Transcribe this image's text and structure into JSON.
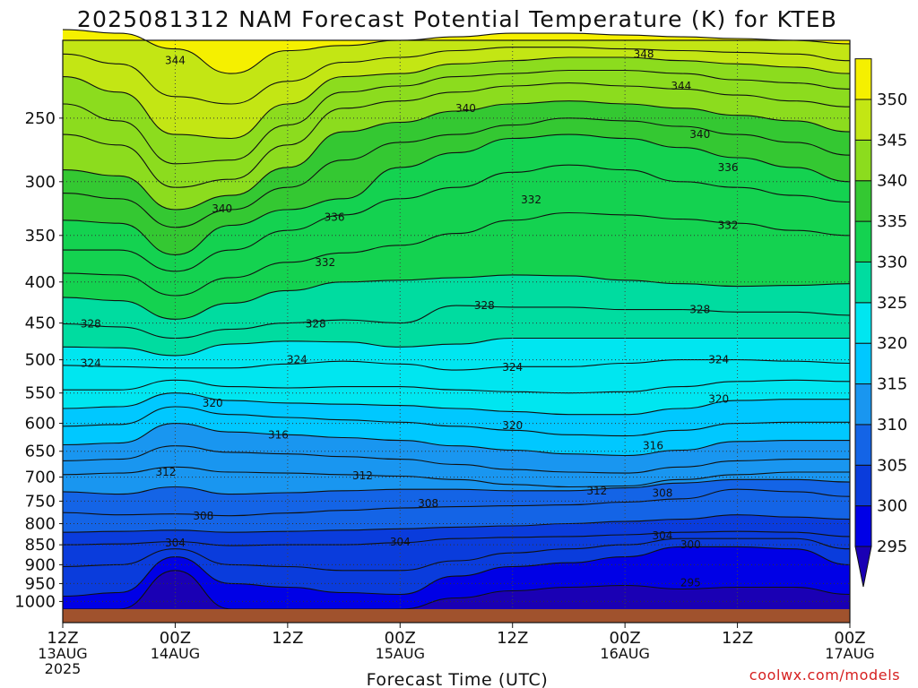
{
  "title": "2025081312 NAM Forecast Potential Temperature (K) for KTEB",
  "credit": "coolwx.com/models",
  "chart_data": {
    "type": "heatmap",
    "subtype": "time-height cross section (filled contours with contour lines)",
    "title": "2025081312 NAM Forecast Potential Temperature (K) for KTEB",
    "xlabel": "Forecast Time (UTC)",
    "ylabel": "",
    "y_axis": {
      "units": "hPa",
      "scale": "log-pressure, reversed",
      "range": [
        1025,
        200
      ],
      "ticks": [
        250,
        300,
        350,
        400,
        450,
        500,
        550,
        600,
        650,
        700,
        750,
        800,
        850,
        900,
        950,
        1000
      ]
    },
    "x_axis": {
      "units": "forecast hour",
      "range": [
        0,
        84
      ],
      "ticks": [
        {
          "hour": 0,
          "lines": [
            "12Z",
            "13AUG",
            "2025"
          ]
        },
        {
          "hour": 12,
          "lines": [
            "00Z",
            "14AUG"
          ]
        },
        {
          "hour": 24,
          "lines": [
            "12Z"
          ]
        },
        {
          "hour": 36,
          "lines": [
            "00Z",
            "15AUG"
          ]
        },
        {
          "hour": 48,
          "lines": [
            "12Z"
          ]
        },
        {
          "hour": 60,
          "lines": [
            "00Z",
            "16AUG"
          ]
        },
        {
          "hour": 72,
          "lines": [
            "12Z"
          ]
        },
        {
          "hour": 84,
          "lines": [
            "00Z",
            "17AUG"
          ]
        }
      ]
    },
    "grid": true,
    "colorbar": {
      "position": "right",
      "labels": [
        295,
        300,
        305,
        310,
        315,
        320,
        325,
        330,
        335,
        340,
        345,
        350
      ],
      "levels": [
        290,
        295,
        300,
        305,
        310,
        315,
        320,
        325,
        330,
        335,
        340,
        345,
        350,
        355
      ],
      "colors": [
        "#1a00b4",
        "#0000e6",
        "#0a3cdc",
        "#1464e6",
        "#1996f0",
        "#00c8ff",
        "#00e6f0",
        "#00dca0",
        "#14d250",
        "#34c832",
        "#8cdc1e",
        "#c3e614",
        "#f5f000",
        "#ffd21e"
      ]
    },
    "values_profile": {
      "note": "approximate potential temperature (K) at pressure levels, read from contours at selected forecast hours",
      "pressure": [
        1000,
        900,
        850,
        800,
        700,
        600,
        500,
        400,
        300,
        250,
        220
      ],
      "series": [
        {
          "hour": 0,
          "values": [
            301,
            302,
            304,
            307,
            312,
            318,
            324,
            330,
            338,
            342,
            346
          ]
        },
        {
          "hour": 12,
          "values": [
            299,
            301,
            304,
            307,
            312,
            318,
            322,
            328,
            340,
            344,
            347
          ]
        },
        {
          "hour": 36,
          "values": [
            300,
            302,
            304,
            307,
            312,
            319,
            324,
            330,
            337,
            341,
            346
          ]
        },
        {
          "hour": 51,
          "values": [
            297,
            299,
            302,
            306,
            311,
            318,
            324,
            331,
            334,
            339,
            345
          ]
        },
        {
          "hour": 66,
          "values": [
            296,
            298,
            301,
            305,
            310,
            318,
            324,
            330,
            335,
            340,
            345
          ]
        },
        {
          "hour": 84,
          "values": [
            298,
            299,
            302,
            306,
            311,
            317,
            324,
            329,
            336,
            342,
            348
          ]
        }
      ]
    },
    "contour_labels": [
      {
        "text": "348",
        "hour": 62,
        "p": 208
      },
      {
        "text": "344",
        "hour": 12,
        "p": 212
      },
      {
        "text": "344",
        "hour": 66,
        "p": 228
      },
      {
        "text": "340",
        "hour": 43,
        "p": 243
      },
      {
        "text": "340",
        "hour": 68,
        "p": 262
      },
      {
        "text": "340",
        "hour": 17,
        "p": 324
      },
      {
        "text": "336",
        "hour": 71,
        "p": 288
      },
      {
        "text": "336",
        "hour": 29,
        "p": 332
      },
      {
        "text": "332",
        "hour": 50,
        "p": 316
      },
      {
        "text": "332",
        "hour": 71,
        "p": 340
      },
      {
        "text": "332",
        "hour": 28,
        "p": 378
      },
      {
        "text": "328",
        "hour": 45,
        "p": 428
      },
      {
        "text": "328",
        "hour": 68,
        "p": 433
      },
      {
        "text": "328",
        "hour": 3,
        "p": 451
      },
      {
        "text": "328",
        "hour": 27,
        "p": 451
      },
      {
        "text": "324",
        "hour": 3,
        "p": 505
      },
      {
        "text": "324",
        "hour": 25,
        "p": 500
      },
      {
        "text": "324",
        "hour": 48,
        "p": 511
      },
      {
        "text": "324",
        "hour": 70,
        "p": 500
      },
      {
        "text": "320",
        "hour": 16,
        "p": 566
      },
      {
        "text": "320",
        "hour": 70,
        "p": 560
      },
      {
        "text": "320",
        "hour": 48,
        "p": 604
      },
      {
        "text": "316",
        "hour": 23,
        "p": 620
      },
      {
        "text": "316",
        "hour": 63,
        "p": 640
      },
      {
        "text": "312",
        "hour": 11,
        "p": 690
      },
      {
        "text": "312",
        "hour": 32,
        "p": 697
      },
      {
        "text": "312",
        "hour": 57,
        "p": 728
      },
      {
        "text": "308",
        "hour": 39,
        "p": 755
      },
      {
        "text": "308",
        "hour": 64,
        "p": 733
      },
      {
        "text": "308",
        "hour": 15,
        "p": 783
      },
      {
        "text": "304",
        "hour": 12,
        "p": 845
      },
      {
        "text": "304",
        "hour": 36,
        "p": 843
      },
      {
        "text": "304",
        "hour": 64,
        "p": 828
      },
      {
        "text": "300",
        "hour": 67,
        "p": 850
      },
      {
        "text": "295",
        "hour": 67,
        "p": 948
      }
    ]
  }
}
